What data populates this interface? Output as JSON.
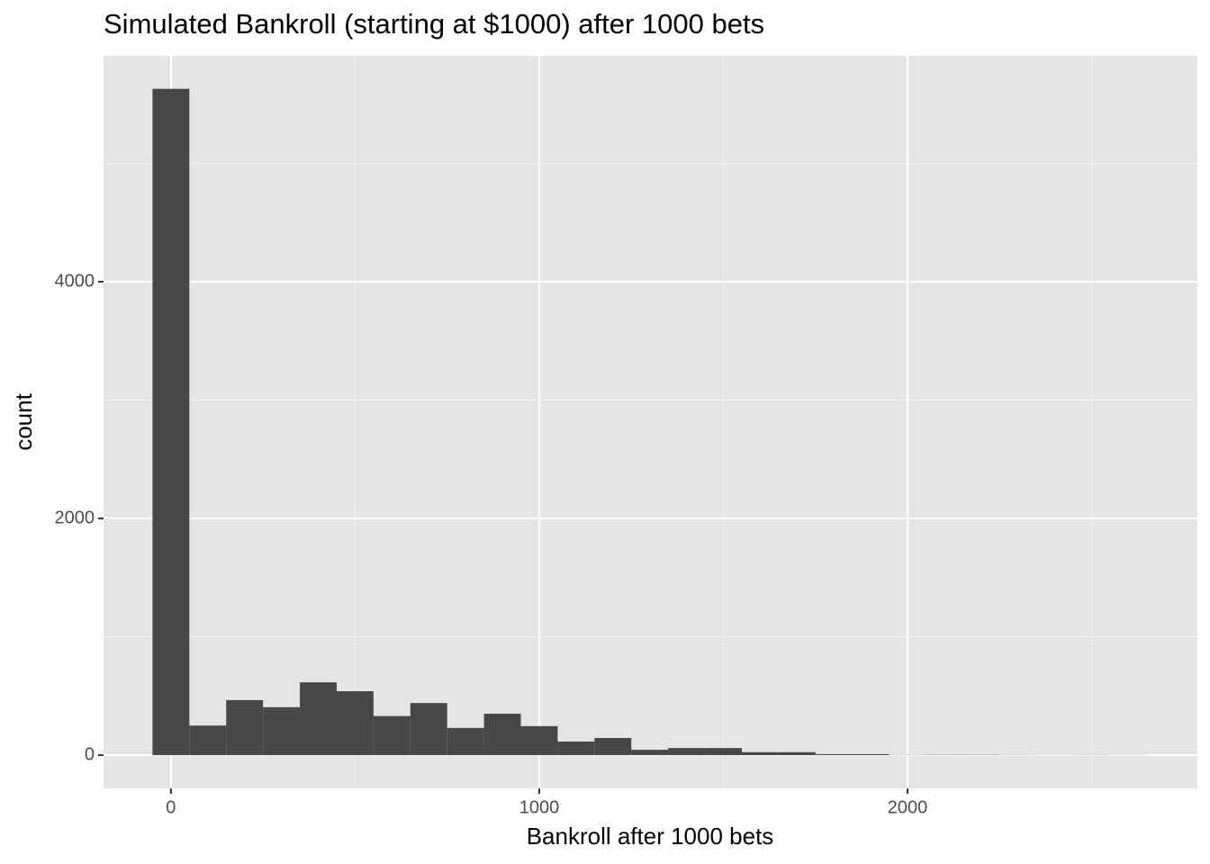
{
  "chart_data": {
    "type": "histogram",
    "title": "Simulated Bankroll (starting at $1000) after 1000 bets",
    "x_label": "Bankroll after 1000 bets",
    "y_label": "count",
    "bins": [
      -50,
      50,
      150,
      250,
      350,
      450,
      550,
      650,
      750,
      850,
      950,
      1050,
      1150,
      1250,
      1350,
      1450,
      1550,
      1650,
      1750,
      1850,
      1950,
      2050,
      2150,
      2250,
      2350,
      2450,
      2550,
      2650
    ],
    "counts": [
      5630,
      250,
      465,
      405,
      615,
      540,
      330,
      440,
      230,
      350,
      245,
      115,
      145,
      45,
      60,
      60,
      25,
      25,
      8,
      8,
      2,
      3,
      3,
      2,
      1,
      2,
      1
    ],
    "color": "#474747",
    "xlim": [
      -183,
      2787
    ],
    "xticks": [
      0,
      1000,
      2000
    ],
    "x_minor_breaks": [
      500,
      1500,
      2500
    ],
    "ylim": [
      -281,
      5909
    ],
    "yticks": [
      0,
      2000,
      4000
    ],
    "y_minor_breaks": [
      1000,
      3000,
      5000
    ],
    "grid": true
  }
}
